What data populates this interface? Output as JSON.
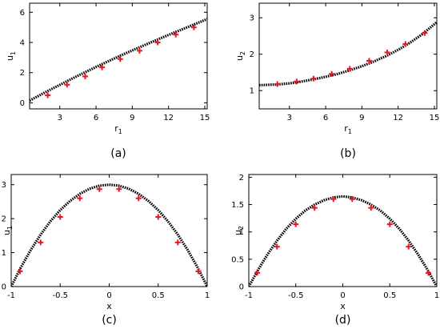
{
  "chart_data": [
    {
      "type": "line",
      "caption": "(a)",
      "xlabel": "r",
      "xlabel_sub": "1",
      "ylabel": "u",
      "ylabel_sub": "1",
      "xlim": [
        0.5,
        15.2
      ],
      "ylim": [
        -0.4,
        6.6
      ],
      "xticks": [
        3,
        6,
        9,
        12,
        15
      ],
      "yticks": [
        0,
        2,
        4,
        6
      ],
      "series": [
        {
          "style": "dotted-curve",
          "color": "#000000",
          "x": [
            0.5,
            2,
            4,
            6,
            8,
            10,
            12,
            14,
            15.2
          ],
          "y": [
            0.15,
            0.78,
            1.6,
            2.38,
            3.12,
            3.82,
            4.5,
            5.15,
            5.55
          ]
        },
        {
          "style": "plus-markers",
          "color": "#e8191e",
          "x": [
            2.0,
            3.6,
            5.1,
            6.5,
            8.0,
            9.6,
            11.1,
            12.6,
            14.1
          ],
          "y": [
            0.5,
            1.2,
            1.75,
            2.35,
            2.9,
            3.45,
            4.0,
            4.52,
            5.0
          ]
        }
      ]
    },
    {
      "type": "line",
      "caption": "(b)",
      "xlabel": "r",
      "xlabel_sub": "1",
      "ylabel": "u",
      "ylabel_sub": "2",
      "xlim": [
        0.5,
        15.2
      ],
      "ylim": [
        0.5,
        3.4
      ],
      "xticks": [
        3,
        6,
        9,
        12,
        15
      ],
      "yticks": [
        1,
        2,
        3
      ],
      "series": [
        {
          "style": "dotted-curve",
          "color": "#000000",
          "x": [
            0.5,
            2,
            3,
            4,
            5,
            6,
            7,
            8,
            9,
            10,
            11,
            12,
            13,
            14,
            15.2
          ],
          "y": [
            1.15,
            1.17,
            1.2,
            1.25,
            1.31,
            1.38,
            1.46,
            1.56,
            1.67,
            1.8,
            1.95,
            2.12,
            2.32,
            2.55,
            2.88
          ]
        },
        {
          "style": "plus-markers",
          "color": "#e8191e",
          "x": [
            2.0,
            3.6,
            5.0,
            6.5,
            8.0,
            9.6,
            11.1,
            12.6,
            14.2
          ],
          "y": [
            1.18,
            1.25,
            1.33,
            1.46,
            1.6,
            1.82,
            2.05,
            2.28,
            2.58
          ]
        }
      ]
    },
    {
      "type": "line",
      "caption": "(c)",
      "xlabel": "x",
      "xlabel_sub": "",
      "ylabel": "u",
      "ylabel_sub": "1",
      "xlim": [
        -1,
        1
      ],
      "ylim": [
        0,
        3.3
      ],
      "xticks": [
        -1,
        -0.5,
        0,
        0.5,
        1
      ],
      "yticks": [
        0,
        1,
        2,
        3
      ],
      "series": [
        {
          "style": "dotted-curve",
          "color": "#000000",
          "x": [
            -1,
            -0.9,
            -0.8,
            -0.7,
            -0.6,
            -0.5,
            -0.4,
            -0.3,
            -0.2,
            -0.1,
            0,
            0.1,
            0.2,
            0.3,
            0.4,
            0.5,
            0.6,
            0.7,
            0.8,
            0.9,
            1
          ],
          "y": [
            0,
            0.57,
            1.08,
            1.53,
            1.92,
            2.25,
            2.52,
            2.73,
            2.88,
            2.97,
            3.0,
            2.97,
            2.88,
            2.73,
            2.52,
            2.25,
            1.92,
            1.53,
            1.08,
            0.57,
            0
          ]
        },
        {
          "style": "plus-markers",
          "color": "#e8191e",
          "x": [
            -0.91,
            -0.7,
            -0.5,
            -0.3,
            -0.1,
            0.1,
            0.3,
            0.5,
            0.7,
            0.91
          ],
          "y": [
            0.45,
            1.3,
            2.05,
            2.6,
            2.87,
            2.87,
            2.6,
            2.05,
            1.3,
            0.45
          ]
        }
      ]
    },
    {
      "type": "line",
      "caption": "(d)",
      "xlabel": "x",
      "xlabel_sub": "",
      "ylabel": "u",
      "ylabel_sub": "2",
      "xlim": [
        -1,
        1
      ],
      "ylim": [
        0,
        2.05
      ],
      "xticks": [
        -1,
        -0.5,
        0,
        0.5,
        1
      ],
      "yticks": [
        0,
        0.5,
        1,
        1.5,
        2
      ],
      "series": [
        {
          "style": "dotted-curve",
          "color": "#000000",
          "x": [
            -1,
            -0.9,
            -0.8,
            -0.7,
            -0.6,
            -0.5,
            -0.4,
            -0.3,
            -0.2,
            -0.1,
            0,
            0.1,
            0.2,
            0.3,
            0.4,
            0.5,
            0.6,
            0.7,
            0.8,
            0.9,
            1
          ],
          "y": [
            0,
            0.31,
            0.59,
            0.84,
            1.06,
            1.24,
            1.39,
            1.5,
            1.58,
            1.63,
            1.65,
            1.63,
            1.58,
            1.5,
            1.39,
            1.24,
            1.06,
            0.84,
            0.59,
            0.31,
            0
          ]
        },
        {
          "style": "plus-markers",
          "color": "#e8191e",
          "x": [
            -0.91,
            -0.7,
            -0.5,
            -0.3,
            -0.1,
            0.1,
            0.3,
            0.5,
            0.7,
            0.91
          ],
          "y": [
            0.25,
            0.73,
            1.14,
            1.44,
            1.6,
            1.6,
            1.44,
            1.14,
            0.73,
            0.25
          ]
        }
      ]
    }
  ]
}
